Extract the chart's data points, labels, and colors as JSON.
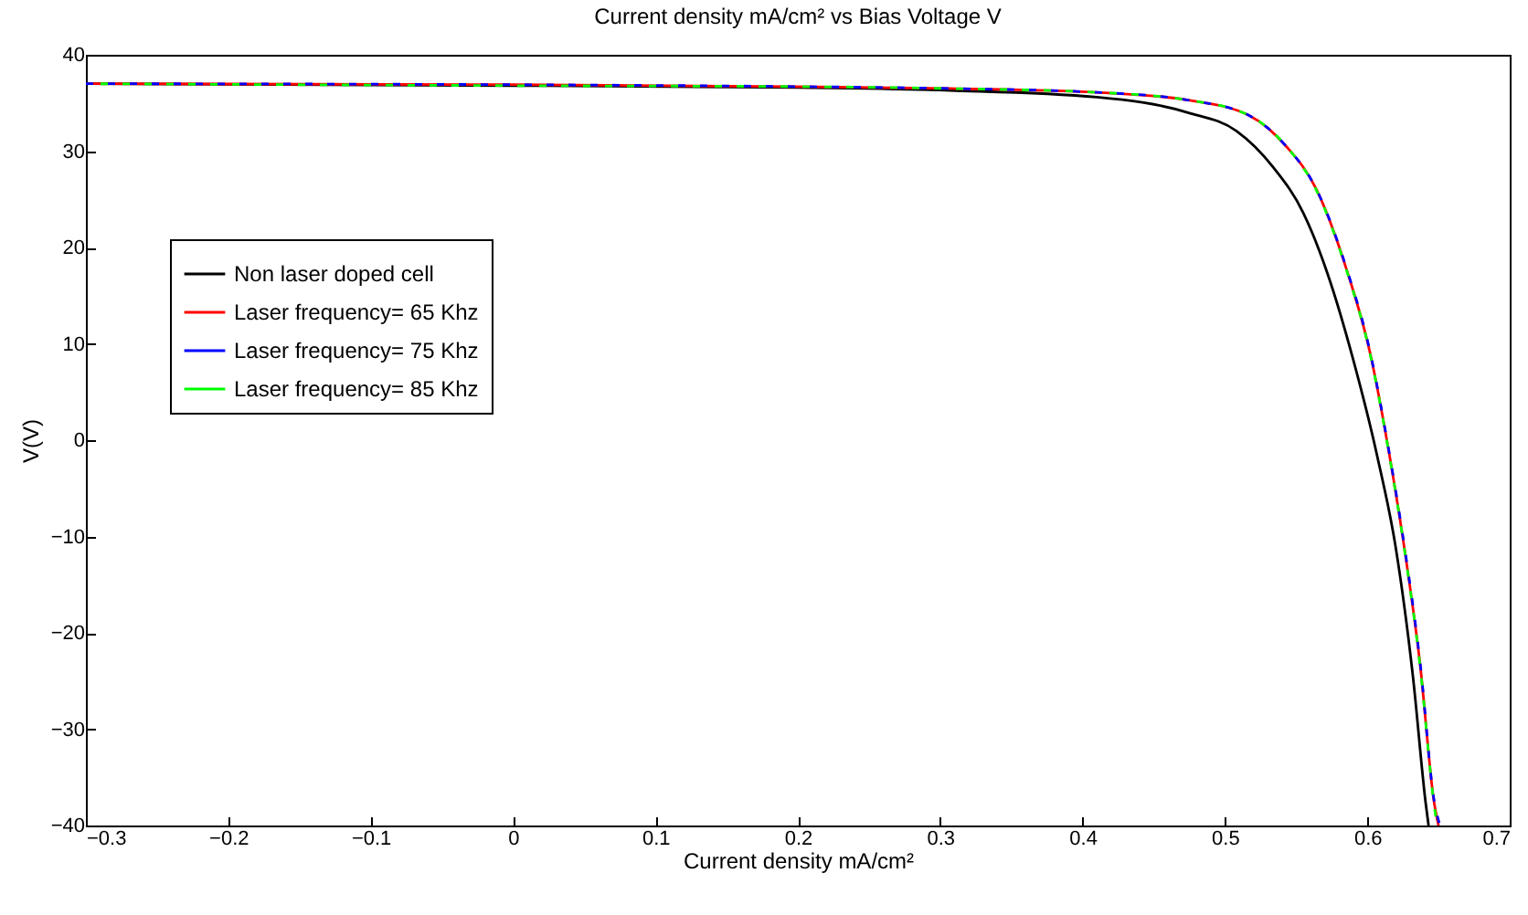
{
  "chart_data": {
    "type": "line",
    "title": "Current density mA/cm² vs Bias Voltage V",
    "xlabel": "Current density mA/cm²",
    "ylabel": "V(V)",
    "xlim": [
      -0.3,
      0.7
    ],
    "xticks": [
      -0.3,
      -0.2,
      -0.1,
      0,
      0.1,
      0.2,
      0.3,
      0.4,
      0.5,
      0.6,
      0.7
    ],
    "ylim": [
      -40,
      40
    ],
    "yticks": [
      -40,
      -30,
      -20,
      -10,
      0,
      10,
      20,
      30,
      40
    ],
    "grid": false,
    "legend": "top left",
    "line_style": "solid",
    "marker": "none",
    "series": [
      {
        "name": "Non laser doped cell",
        "color": "#000000",
        "x": [
          -0.3,
          0,
          0.2,
          0.307,
          0.41,
          0.474,
          0.508,
          0.534,
          0.555,
          0.572,
          0.59,
          0.607,
          0.62,
          0.632,
          0.641,
          0.643
        ],
        "values": [
          37,
          36.8,
          36.6,
          36.3,
          35.6,
          34,
          32.1,
          28.3,
          23.6,
          17.3,
          8.4,
          -1.7,
          -11.2,
          -24.5,
          -37.7,
          -40
        ]
      },
      {
        "name": "Laser frequency= 65 Khz",
        "color": "#ff0000",
        "x": [
          -0.3,
          0,
          0.2,
          0.307,
          0.41,
          0.474,
          0.517,
          0.543,
          0.564,
          0.585,
          0.602,
          0.615,
          0.626,
          0.637,
          0.647,
          0.65
        ],
        "values": [
          37,
          36.9,
          36.7,
          36.5,
          36.1,
          35.3,
          33.7,
          30.5,
          26.1,
          17.9,
          9,
          -1.1,
          -11.2,
          -23.2,
          -37.7,
          -40
        ]
      },
      {
        "name": "Laser frequency= 75 Khz",
        "color": "#0000ff",
        "line_style": "dashed",
        "x": [
          -0.3,
          0,
          0.2,
          0.307,
          0.41,
          0.474,
          0.517,
          0.543,
          0.564,
          0.585,
          0.602,
          0.615,
          0.626,
          0.637,
          0.647,
          0.651
        ],
        "values": [
          37,
          36.9,
          36.7,
          36.5,
          36.1,
          35.3,
          33.7,
          30.5,
          26.1,
          18,
          9.1,
          -1,
          -11,
          -23,
          -37.5,
          -40
        ]
      },
      {
        "name": "Laser frequency= 85 Khz",
        "color": "#00ff00",
        "line_style": "dashed",
        "x": [
          -0.3,
          0,
          0.2,
          0.307,
          0.41,
          0.474,
          0.517,
          0.543,
          0.564,
          0.585,
          0.602,
          0.615,
          0.626,
          0.637,
          0.647,
          0.649
        ],
        "values": [
          37,
          36.8,
          36.7,
          36.5,
          36.1,
          35.3,
          33.7,
          30.5,
          26,
          17.8,
          8.9,
          -1.2,
          -11.3,
          -23.4,
          -38,
          -40
        ]
      }
    ]
  }
}
